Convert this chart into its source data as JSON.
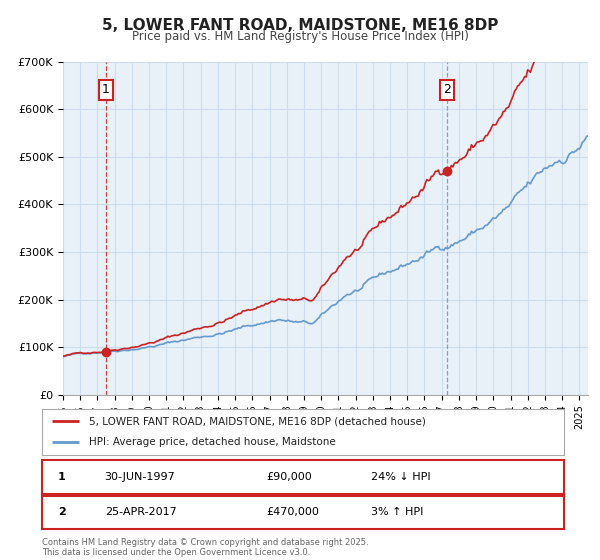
{
  "title": "5, LOWER FANT ROAD, MAIDSTONE, ME16 8DP",
  "subtitle": "Price paid vs. HM Land Registry's House Price Index (HPI)",
  "ylim": [
    0,
    700000
  ],
  "yticks": [
    0,
    100000,
    200000,
    300000,
    400000,
    500000,
    600000,
    700000
  ],
  "xlim_start": 1995.0,
  "xlim_end": 2025.5,
  "hpi_color": "#6699cc",
  "price_color": "#cc2222",
  "marker_color": "#cc2222",
  "grid_color": "#ccddee",
  "bg_color": "#e8f0f8",
  "sale1_date": 1997.5,
  "sale1_price": 90000,
  "sale2_date": 2017.32,
  "sale2_price": 470000,
  "legend_line1": "5, LOWER FANT ROAD, MAIDSTONE, ME16 8DP (detached house)",
  "legend_line2": "HPI: Average price, detached house, Maidstone",
  "footnote": "Contains HM Land Registry data © Crown copyright and database right 2025.\nThis data is licensed under the Open Government Licence v3.0."
}
